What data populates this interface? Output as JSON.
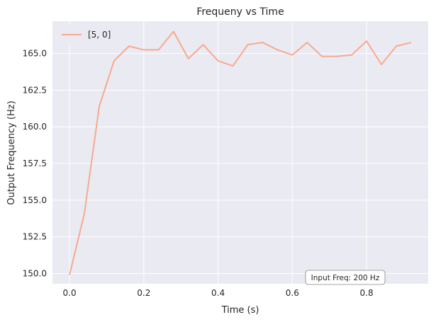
{
  "chart_data": {
    "type": "line",
    "title": "Frequeny vs Time",
    "xlabel": "Time (s)",
    "ylabel": "Output Frequency (Hz)",
    "xlim": [
      -0.046,
      0.966
    ],
    "ylim": [
      149.3,
      167.2
    ],
    "xticks": [
      0.0,
      0.2,
      0.4,
      0.6,
      0.8
    ],
    "xtick_labels": [
      "0.0",
      "0.2",
      "0.4",
      "0.6",
      "0.8"
    ],
    "yticks": [
      150.0,
      152.5,
      155.0,
      157.5,
      160.0,
      162.5,
      165.0
    ],
    "ytick_labels": [
      "150.0",
      "152.5",
      "155.0",
      "157.5",
      "160.0",
      "162.5",
      "165.0"
    ],
    "grid": true,
    "legend_position": "top-left",
    "series": [
      {
        "name": "[5, 0]",
        "color": "#f9a98e",
        "x": [
          0.0,
          0.04,
          0.08,
          0.12,
          0.16,
          0.2,
          0.24,
          0.28,
          0.32,
          0.36,
          0.4,
          0.44,
          0.48,
          0.52,
          0.56,
          0.6,
          0.64,
          0.68,
          0.72,
          0.76,
          0.8,
          0.84,
          0.88,
          0.92
        ],
        "y": [
          149.9,
          154.1,
          161.4,
          164.5,
          165.5,
          165.25,
          165.25,
          166.5,
          164.65,
          165.6,
          164.5,
          164.15,
          165.6,
          165.75,
          165.25,
          164.9,
          165.75,
          164.8,
          164.8,
          164.9,
          165.85,
          164.25,
          165.5,
          165.75
        ]
      }
    ],
    "annotation": "Input Freq: 200 Hz",
    "annotation_position": "bottom-right",
    "background_color": "#eaeaf2",
    "grid_color": "#ffffff"
  }
}
